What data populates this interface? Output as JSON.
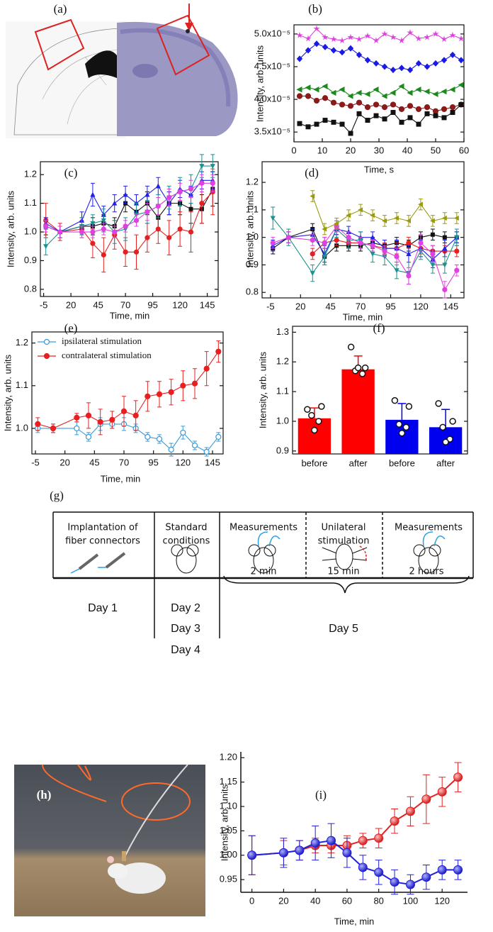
{
  "panel_labels": [
    "(a)",
    "(b)",
    "(c)",
    "(d)",
    "(e)",
    "(f)",
    "(g)",
    "(h)",
    "(i)"
  ],
  "diagram": {
    "steps": [
      [
        "Implantation of",
        "fiber connectors"
      ],
      [
        "Standard",
        "conditions"
      ],
      [
        "Measurements"
      ],
      [
        "Unilateral",
        "stimulation"
      ],
      [
        "Measurements"
      ]
    ],
    "durations": [
      "2 min",
      "15 min",
      "2 hours"
    ],
    "days": [
      "Day 1",
      "Day 2",
      "Day 3",
      "Day 4",
      "Day 5"
    ]
  },
  "chart_data": [
    {
      "type": "line",
      "y_label": "Intensity, arb. units",
      "x_label": "Time, s",
      "x": [
        2,
        5,
        8,
        11,
        14,
        17,
        20,
        23,
        26,
        29,
        32,
        35,
        38,
        41,
        44,
        47,
        50,
        53,
        56,
        59
      ],
      "xlim": [
        0,
        60
      ],
      "xticks": [
        0,
        10,
        20,
        30,
        40,
        50,
        60
      ],
      "ylim": [
        3.35e-05,
        5.14e-05
      ],
      "yticks": [
        {
          "value": 3.5e-05,
          "label": "3.5x10⁻⁵"
        },
        {
          "value": 4e-05,
          "label": "4.0x10⁻⁵"
        },
        {
          "value": 4.5e-05,
          "label": "4.5x10⁻⁵"
        },
        {
          "value": 5e-05,
          "label": "5.0x10⁻⁵"
        }
      ],
      "series": [
        {
          "color": "#e040e0",
          "marker": "star",
          "values": [
            4.98e-05,
            4.93e-05,
            5.08e-05,
            4.95e-05,
            4.92e-05,
            4.9e-05,
            4.95e-05,
            4.92e-05,
            4.97e-05,
            4.9e-05,
            5e-05,
            4.95e-05,
            4.9e-05,
            5.02e-05,
            4.93e-05,
            4.95e-05,
            5e-05,
            4.92e-05,
            4.98e-05,
            4.93e-05
          ]
        },
        {
          "color": "#1a1ae6",
          "marker": "diamond",
          "values": [
            4.62e-05,
            4.75e-05,
            4.85e-05,
            4.8e-05,
            4.75e-05,
            4.72e-05,
            4.78e-05,
            4.68e-05,
            4.6e-05,
            4.55e-05,
            4.5e-05,
            4.45e-05,
            4.48e-05,
            4.45e-05,
            4.55e-05,
            4.5e-05,
            4.55e-05,
            4.6e-05,
            4.68e-05,
            4.6e-05
          ]
        },
        {
          "color": "#1a8a1a",
          "marker": "triangle-left",
          "values": [
            4.15e-05,
            4.18e-05,
            4.15e-05,
            4.2e-05,
            4.1e-05,
            4.15e-05,
            4.05e-05,
            4.1e-05,
            4.08e-05,
            4.15e-05,
            4.05e-05,
            4.1e-05,
            4.2e-05,
            4.1e-05,
            4.15e-05,
            4.12e-05,
            4.08e-05,
            4.12e-05,
            4.15e-05,
            4.22e-05
          ]
        },
        {
          "color": "#8b1a1a",
          "marker": "circle",
          "values": [
            4.05e-05,
            4.05e-05,
            3.98e-05,
            4.02e-05,
            3.95e-05,
            3.92e-05,
            3.9e-05,
            3.95e-05,
            3.88e-05,
            3.92e-05,
            3.88e-05,
            3.92e-05,
            3.85e-05,
            3.9e-05,
            3.85e-05,
            3.88e-05,
            3.82e-05,
            3.85e-05,
            3.88e-05,
            3.92e-05
          ]
        },
        {
          "color": "#111111",
          "marker": "square",
          "values": [
            3.63e-05,
            3.58e-05,
            3.62e-05,
            3.68e-05,
            3.65e-05,
            3.62e-05,
            3.48e-05,
            3.78e-05,
            3.68e-05,
            3.75e-05,
            3.7e-05,
            3.8e-05,
            3.65e-05,
            3.72e-05,
            3.62e-05,
            3.78e-05,
            3.75e-05,
            3.72e-05,
            3.8e-05,
            3.92e-05
          ]
        }
      ]
    },
    {
      "type": "line",
      "y_label": "Intensity, arb. units",
      "x_label": "Time, min",
      "x": [
        -3,
        10,
        30,
        40,
        50,
        60,
        70,
        80,
        90,
        100,
        110,
        120,
        130,
        140,
        150
      ],
      "xlim": [
        -8,
        155
      ],
      "xticks": [
        -5,
        20,
        45,
        70,
        95,
        120,
        145
      ],
      "ylim": [
        0.775,
        1.245
      ],
      "yticks": [
        0.8,
        0.9,
        {
          "value": 1,
          "label": "1.0"
        },
        1.1,
        1.2
      ],
      "series": [
        {
          "color": "#111111",
          "marker": "square",
          "values": [
            1.02,
            1.0,
            1.02,
            1.02,
            1.03,
            1.02,
            1.1,
            1.07,
            1.1,
            1.05,
            1.1,
            1.1,
            1.08,
            1.08,
            1.15
          ],
          "errors": [
            0.03,
            0.02,
            0.03,
            0.03,
            0.03,
            0.03,
            0.03,
            0.03,
            0.04,
            0.04,
            0.04,
            0.04,
            0.05,
            0.05,
            0.06
          ]
        },
        {
          "color": "#e62020",
          "marker": "circle",
          "values": [
            1.04,
            1.0,
            1.01,
            0.96,
            0.92,
            0.99,
            0.93,
            0.93,
            0.98,
            1.01,
            0.98,
            1.01,
            1.0,
            1.1,
            1.14
          ],
          "errors": [
            0.06,
            0.03,
            0.03,
            0.05,
            0.06,
            0.05,
            0.05,
            0.06,
            0.05,
            0.05,
            0.06,
            0.06,
            0.07,
            0.07,
            0.08
          ]
        },
        {
          "color": "#2020e6",
          "marker": "triangle",
          "values": [
            1.03,
            1.0,
            1.04,
            1.13,
            1.06,
            1.1,
            1.13,
            1.1,
            1.13,
            1.16,
            1.1,
            1.15,
            1.13,
            1.18,
            1.18
          ],
          "errors": [
            0.02,
            0.02,
            0.03,
            0.04,
            0.03,
            0.03,
            0.03,
            0.03,
            0.03,
            0.03,
            0.04,
            0.03,
            0.03,
            0.03,
            0.03
          ]
        },
        {
          "color": "#1a9090",
          "marker": "triangle-down",
          "values": [
            0.95,
            1.0,
            1.02,
            1.03,
            1.04,
            1.0,
            1.01,
            1.06,
            1.07,
            1.09,
            1.12,
            1.14,
            1.15,
            1.23,
            1.23
          ],
          "errors": [
            0.03,
            0.02,
            0.03,
            0.03,
            0.04,
            0.04,
            0.04,
            0.04,
            0.04,
            0.04,
            0.04,
            0.05,
            0.05,
            0.04,
            0.04
          ]
        },
        {
          "color": "#e040e0",
          "marker": "circle",
          "values": [
            1.02,
            1.0,
            1.0,
            1.0,
            1.01,
            1.0,
            1.02,
            1.04,
            1.07,
            1.09,
            1.12,
            1.14,
            1.15,
            1.17,
            1.17
          ],
          "errors": [
            0.02,
            0.02,
            0.02,
            0.02,
            0.02,
            0.02,
            0.02,
            0.02,
            0.03,
            0.03,
            0.03,
            0.03,
            0.03,
            0.03,
            0.03
          ]
        }
      ]
    },
    {
      "type": "line",
      "y_label": "Intensity, arb. units",
      "x_label": "Time, min",
      "x": [
        -3,
        10,
        30,
        40,
        50,
        60,
        70,
        80,
        90,
        100,
        110,
        120,
        130,
        140,
        150
      ],
      "xlim": [
        -12,
        156
      ],
      "xticks": [
        -5,
        20,
        45,
        70,
        95,
        120,
        145
      ],
      "ylim": [
        0.78,
        1.275
      ],
      "yticks": [
        0.8,
        0.9,
        {
          "value": 1,
          "label": "1.0"
        },
        1.1,
        1.2
      ],
      "series": [
        {
          "color": "#111111",
          "marker": "square",
          "values": [
            0.96,
            1.0,
            1.03,
            0.93,
            0.97,
            0.97,
            0.97,
            0.98,
            0.97,
            0.98,
            0.97,
            1.0,
            1.01,
            1.0,
            1.0
          ],
          "errors": [
            0.02,
            0.02,
            0.02,
            0.03,
            0.02,
            0.02,
            0.02,
            0.02,
            0.02,
            0.02,
            0.02,
            0.02,
            0.02,
            0.02,
            0.02
          ]
        },
        {
          "color": "#e62020",
          "marker": "circle",
          "values": [
            null,
            null,
            0.94,
            0.98,
            0.99,
            0.98,
            0.98,
            0.97,
            0.96,
            0.96,
            0.98,
            0.96,
            0.95,
            0.95,
            0.95
          ],
          "errors": [
            null,
            null,
            0.02,
            0.02,
            0.02,
            0.02,
            0.02,
            0.02,
            0.02,
            0.02,
            0.02,
            0.02,
            0.02,
            0.02,
            0.02
          ]
        },
        {
          "color": "#2020e6",
          "marker": "triangle",
          "values": [
            0.97,
            1.0,
            1.01,
            0.94,
            1.03,
            1.02,
            1.0,
            1.0,
            0.96,
            0.96,
            0.94,
            0.96,
            0.92,
            0.96,
            1.0
          ],
          "errors": [
            0.02,
            0.02,
            0.02,
            0.03,
            0.02,
            0.02,
            0.02,
            0.02,
            0.03,
            0.03,
            0.03,
            0.03,
            0.03,
            0.03,
            0.02
          ]
        },
        {
          "color": "#1a9090",
          "marker": "triangle-down",
          "values": [
            1.07,
            1.0,
            0.87,
            0.93,
            1.03,
            0.99,
            0.99,
            0.94,
            0.93,
            0.88,
            0.87,
            0.95,
            0.9,
            0.9,
            1.0
          ],
          "errors": [
            0.04,
            0.03,
            0.03,
            0.03,
            0.03,
            0.03,
            0.03,
            0.03,
            0.03,
            0.03,
            0.04,
            0.03,
            0.03,
            0.03,
            0.03
          ]
        },
        {
          "color": "#e040e0",
          "marker": "circle",
          "values": [
            0.98,
            1.0,
            0.99,
            0.98,
            1.04,
            1.0,
            0.98,
            0.97,
            0.95,
            0.93,
            0.86,
            0.98,
            0.94,
            0.81,
            0.88
          ],
          "errors": [
            0.02,
            0.02,
            0.02,
            0.02,
            0.02,
            0.02,
            0.02,
            0.02,
            0.02,
            0.03,
            0.03,
            0.03,
            0.03,
            0.03,
            0.02
          ]
        },
        {
          "color": "#9a9a10",
          "marker": "triangle-left",
          "values": [
            null,
            null,
            1.15,
            1.03,
            1.05,
            1.08,
            1.1,
            1.08,
            1.06,
            1.07,
            1.06,
            1.12,
            1.06,
            1.07,
            1.07
          ],
          "errors": [
            null,
            null,
            0.02,
            0.02,
            0.02,
            0.02,
            0.02,
            0.02,
            0.02,
            0.02,
            0.02,
            0.02,
            0.02,
            0.02,
            0.02
          ]
        }
      ]
    },
    {
      "type": "line",
      "y_label": "Intensity, arb. units",
      "x_label": "Time, min",
      "legend": "top-left",
      "x": [
        -3,
        10,
        30,
        40,
        50,
        60,
        70,
        80,
        90,
        100,
        110,
        120,
        130,
        140,
        150
      ],
      "xlim": [
        -8,
        154
      ],
      "xticks": [
        -5,
        20,
        45,
        70,
        95,
        120,
        145
      ],
      "ylim": [
        0.94,
        1.226
      ],
      "yticks": [
        {
          "value": 1,
          "label": "1.0"
        },
        1.1,
        1.2
      ],
      "series": [
        {
          "name": "ipsilateral stimulation",
          "color": "#3a9ad9",
          "marker": "open-circle",
          "values": [
            1.0,
            1.0,
            1.0,
            0.98,
            1.01,
            1.01,
            1.01,
            1.0,
            0.98,
            0.975,
            0.95,
            0.99,
            0.96,
            0.945,
            0.98
          ],
          "errors": [
            0.01,
            0.01,
            0.015,
            0.01,
            0.015,
            0.01,
            0.015,
            0.01,
            0.01,
            0.01,
            0.015,
            0.015,
            0.01,
            0.01,
            0.01
          ]
        },
        {
          "name": "contralateral stimulation",
          "color": "#e62020",
          "marker": "circle",
          "values": [
            1.01,
            1.0,
            1.025,
            1.03,
            1.015,
            1.02,
            1.04,
            1.03,
            1.075,
            1.08,
            1.085,
            1.1,
            1.105,
            1.14,
            1.18
          ],
          "errors": [
            0.015,
            0.01,
            0.01,
            0.03,
            0.03,
            0.02,
            0.035,
            0.035,
            0.035,
            0.03,
            0.03,
            0.035,
            0.035,
            0.04,
            0.025
          ]
        }
      ]
    },
    {
      "type": "bar",
      "y_label": "Intensity, arb. units",
      "categories": [
        "before",
        "after",
        "before",
        "after"
      ],
      "colors": [
        "#ff0000",
        "#ff0000",
        "#0000ee",
        "#0000ee"
      ],
      "values": [
        1.01,
        1.175,
        1.005,
        0.98
      ],
      "errors": [
        0.035,
        0.045,
        0.055,
        0.06
      ],
      "points": [
        [
          1.04,
          1.05,
          1.02,
          1.0,
          0.97
        ],
        [
          1.25,
          1.18,
          1.17,
          1.16,
          1.18
        ],
        [
          1.07,
          1.05,
          0.99,
          0.98,
          0.96
        ],
        [
          1.06,
          1.0,
          0.98,
          0.94,
          0.93
        ]
      ],
      "ylim": [
        0.89,
        1.32
      ],
      "yticks": [
        0.9,
        {
          "value": 1,
          "label": "1.0"
        },
        1.1,
        1.2,
        1.3
      ]
    },
    {
      "type": "line",
      "y_label": "Intensity, arb. units",
      "x_label": "Time, min",
      "x": [
        0,
        20,
        30,
        40,
        50,
        60,
        70,
        80,
        90,
        100,
        110,
        120,
        130
      ],
      "xlim": [
        -7,
        136
      ],
      "xticks": [
        0,
        20,
        40,
        60,
        80,
        100,
        120
      ],
      "ylim": [
        0.924,
        1.212
      ],
      "yticks": [
        0.95,
        {
          "value": 1,
          "label": "1.00"
        },
        1.05,
        {
          "value": 1.1,
          "label": "1.10"
        },
        1.15,
        {
          "value": 1.2,
          "label": "1.20"
        }
      ],
      "series": [
        {
          "color": "#e62020",
          "marker": "ball",
          "values": [
            1.0,
            1.005,
            1.01,
            1.02,
            1.02,
            1.02,
            1.03,
            1.035,
            1.07,
            1.09,
            1.115,
            1.13,
            1.16
          ],
          "errors": [
            0.04,
            0.025,
            0.02,
            0.015,
            0.015,
            0.02,
            0.015,
            0.02,
            0.025,
            0.03,
            0.05,
            0.03,
            0.03
          ]
        },
        {
          "color": "#2020e0",
          "marker": "ball",
          "values": [
            1.0,
            1.005,
            1.01,
            1.025,
            1.03,
            1.005,
            0.975,
            0.965,
            0.945,
            0.94,
            0.955,
            0.97,
            0.97
          ],
          "errors": [
            0.04,
            0.03,
            0.02,
            0.035,
            0.035,
            0.03,
            0.025,
            0.025,
            0.025,
            0.02,
            0.025,
            0.02,
            0.02
          ]
        }
      ]
    }
  ]
}
